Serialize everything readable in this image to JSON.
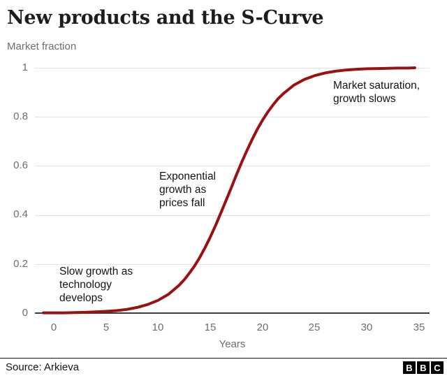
{
  "header": {
    "title": "New products and the S-Curve"
  },
  "chart_data": {
    "type": "line",
    "title": "New products and the S-Curve",
    "ylabel": "Market fraction",
    "xlabel": "Years",
    "x_ticks": [
      "0",
      "5",
      "10",
      "15",
      "20",
      "25",
      "30",
      "35"
    ],
    "y_ticks": [
      "1",
      "0.8",
      "0.6",
      "0.4",
      "0.2",
      "0"
    ],
    "xlim": [
      -1.8,
      36
    ],
    "ylim": [
      0,
      1
    ],
    "grid": "horizontal-light",
    "legend": "none",
    "line_color": "#9b1010",
    "axis_color": "#3d3d3d",
    "gridline_color": "#e2e2e2",
    "series": [
      {
        "name": "Market fraction",
        "points": [
          [
            -1,
            0.001
          ],
          [
            0,
            0.001
          ],
          [
            1,
            0.001
          ],
          [
            2,
            0.002
          ],
          [
            3,
            0.003
          ],
          [
            4,
            0.005
          ],
          [
            5,
            0.007
          ],
          [
            6,
            0.01
          ],
          [
            7,
            0.015
          ],
          [
            8,
            0.023
          ],
          [
            9,
            0.035
          ],
          [
            10,
            0.052
          ],
          [
            11,
            0.077
          ],
          [
            12,
            0.113
          ],
          [
            12.5,
            0.136
          ],
          [
            13,
            0.163
          ],
          [
            13.5,
            0.193
          ],
          [
            14,
            0.228
          ],
          [
            14.5,
            0.267
          ],
          [
            15,
            0.31
          ],
          [
            15.5,
            0.357
          ],
          [
            16,
            0.407
          ],
          [
            16.5,
            0.458
          ],
          [
            17,
            0.51
          ],
          [
            17.5,
            0.563
          ],
          [
            18,
            0.614
          ],
          [
            18.5,
            0.662
          ],
          [
            19,
            0.707
          ],
          [
            19.5,
            0.749
          ],
          [
            20,
            0.786
          ],
          [
            20.5,
            0.819
          ],
          [
            21,
            0.848
          ],
          [
            21.5,
            0.874
          ],
          [
            22,
            0.895
          ],
          [
            23,
            0.929
          ],
          [
            24,
            0.952
          ],
          [
            25,
            0.968
          ],
          [
            26,
            0.979
          ],
          [
            27,
            0.986
          ],
          [
            28,
            0.991
          ],
          [
            29,
            0.994
          ],
          [
            30,
            0.996
          ],
          [
            31,
            0.997
          ],
          [
            32,
            0.998
          ],
          [
            33,
            0.999
          ],
          [
            34,
            0.999
          ],
          [
            34.6,
            1.0
          ]
        ]
      }
    ],
    "annotations": [
      {
        "id": "slow",
        "lines": [
          "Slow growth as",
          "technology",
          "develops"
        ]
      },
      {
        "id": "exponential",
        "lines": [
          "Exponential",
          "growth as",
          "prices fall"
        ]
      },
      {
        "id": "saturation",
        "lines": [
          "Market saturation,",
          "growth slows"
        ]
      }
    ]
  },
  "footer": {
    "source": "Source: Arkieva",
    "logo_letters": [
      "B",
      "B",
      "C"
    ]
  }
}
